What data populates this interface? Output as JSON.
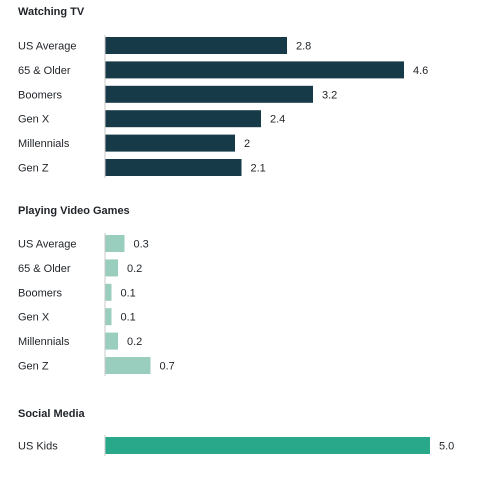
{
  "chart_data": [
    {
      "type": "bar",
      "orientation": "horizontal",
      "title": "Watching TV",
      "categories": [
        "US Average",
        "65 & Older",
        "Boomers",
        "Gen X",
        "Millennials",
        "Gen Z"
      ],
      "values": [
        2.8,
        4.6,
        3.2,
        2.4,
        2,
        2.1
      ],
      "value_labels": [
        "2.8",
        "4.6",
        "3.2",
        "2.4",
        "2",
        "2.1"
      ],
      "color": "#173a48",
      "grid": false
    },
    {
      "type": "bar",
      "orientation": "horizontal",
      "title": "Playing Video Games",
      "categories": [
        "US Average",
        "65 & Older",
        "Boomers",
        "Gen X",
        "Millennials",
        "Gen Z"
      ],
      "values": [
        0.3,
        0.2,
        0.1,
        0.1,
        0.2,
        0.7
      ],
      "value_labels": [
        "0.3",
        "0.2",
        "0.1",
        "0.1",
        "0.2",
        "0.7"
      ],
      "color": "#99cdbd",
      "grid": false
    },
    {
      "type": "bar",
      "orientation": "horizontal",
      "title": "Social Media",
      "categories": [
        "US Kids"
      ],
      "values": [
        5.0
      ],
      "value_labels": [
        "5.0"
      ],
      "color": "#2aa88a",
      "grid": false
    }
  ],
  "axis_color": "#c8c8c8"
}
